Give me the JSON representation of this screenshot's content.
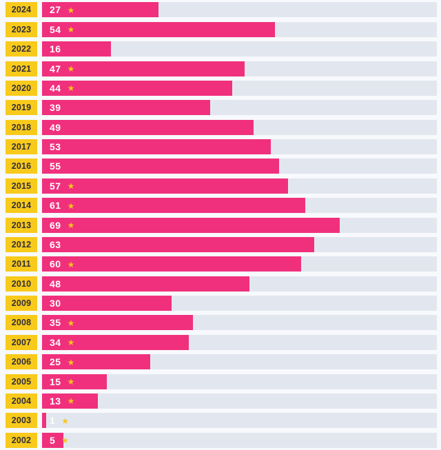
{
  "chart_data": {
    "type": "bar",
    "orientation": "horizontal",
    "categories": [
      "2024",
      "2023",
      "2022",
      "2021",
      "2020",
      "2019",
      "2018",
      "2017",
      "2016",
      "2015",
      "2014",
      "2013",
      "2012",
      "2011",
      "2010",
      "2009",
      "2008",
      "2007",
      "2006",
      "2005",
      "2004",
      "2003",
      "2002"
    ],
    "values": [
      27,
      54,
      16,
      47,
      44,
      39,
      49,
      53,
      55,
      57,
      61,
      69,
      63,
      60,
      48,
      30,
      35,
      34,
      25,
      15,
      13,
      1,
      5
    ],
    "starred": [
      true,
      true,
      false,
      true,
      true,
      false,
      false,
      false,
      false,
      true,
      true,
      true,
      false,
      true,
      false,
      false,
      true,
      true,
      true,
      true,
      true,
      true,
      true
    ],
    "title": "",
    "xlabel": "",
    "ylabel": "",
    "xlim": [
      0,
      91.5
    ],
    "grid": false,
    "legend": "none",
    "colors": {
      "bar": "#f0307c",
      "track": "#e2e7ef",
      "label_background": "#f8ca1b",
      "label_text": "#322f3c",
      "value_text": "#ffffff",
      "star": "#fcc41d",
      "page_background": "#f7f9fc"
    }
  },
  "icons": {
    "star": "★"
  }
}
